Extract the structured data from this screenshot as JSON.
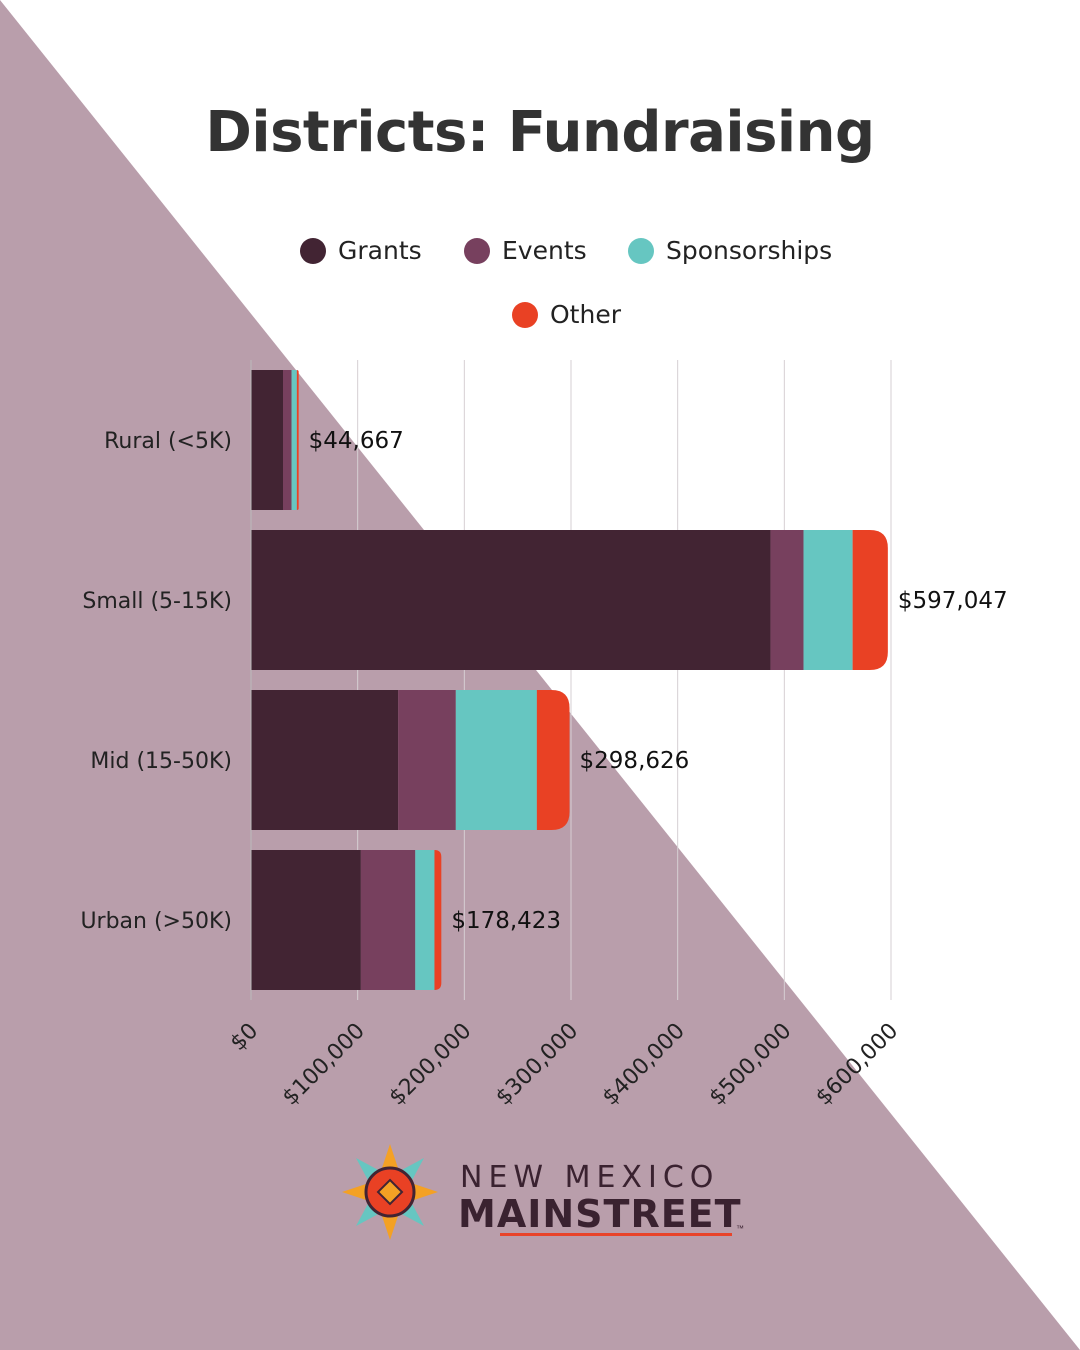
{
  "colors": {
    "background": "#ffffff",
    "triangle": "#b99eab",
    "grants": "#422433",
    "events": "#77405e",
    "sponsorships": "#66c6c1",
    "other": "#e94124",
    "gridline": "#d6cfd3"
  },
  "chart_data": {
    "type": "bar",
    "orientation": "horizontal",
    "stacked": true,
    "title": "Districts: Fundraising",
    "categories": [
      "Rural (<5K)",
      "Small (5-15K)",
      "Mid (15-50K)",
      "Urban (>50K)"
    ],
    "series": [
      {
        "name": "Grants",
        "color": "#422433",
        "values": [
          30000,
          487000,
          138000,
          103000
        ]
      },
      {
        "name": "Events",
        "color": "#77405e",
        "values": [
          8000,
          31000,
          54000,
          51000
        ]
      },
      {
        "name": "Sponsorships",
        "color": "#66c6c1",
        "values": [
          5000,
          46000,
          76000,
          18000
        ]
      },
      {
        "name": "Other",
        "color": "#e94124",
        "values": [
          1667,
          33047,
          30626,
          6423
        ]
      }
    ],
    "totals": [
      44667,
      597047,
      298626,
      178423
    ],
    "total_labels": [
      "$44,667",
      "$597,047",
      "$298,626",
      "$178,423"
    ],
    "x_ticks": [
      0,
      100000,
      200000,
      300000,
      400000,
      500000,
      600000
    ],
    "x_tick_labels": [
      "$0",
      "$100,000",
      "$200,000",
      "$300,000",
      "$400,000",
      "$500,000",
      "$600,000"
    ],
    "xlim": [
      0,
      600000
    ],
    "grid": true,
    "legend_placement": "top-center"
  },
  "logo": {
    "line1": "NEW MEXICO",
    "line2": "MAINSTREET",
    "tm": "™"
  }
}
